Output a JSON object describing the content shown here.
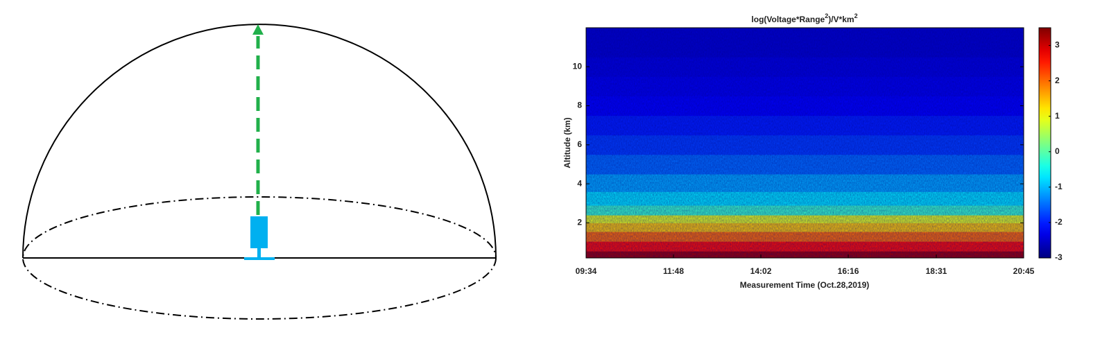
{
  "chart_data": {
    "type": "heatmap",
    "title_parts": [
      "log(Voltage*Range",
      "2",
      ")/V*km",
      "2"
    ],
    "x_label": "Measurement Time (Oct.28,2019)",
    "y_label": "Altitude (km)",
    "xlim": [
      "09:34",
      "20:45"
    ],
    "xticks": [
      "09:34",
      "11:48",
      "14:02",
      "16:16",
      "18:31",
      "20:45"
    ],
    "ylim": [
      0.2,
      12
    ],
    "yticks": [
      2,
      4,
      6,
      8,
      10
    ],
    "clim": [
      -3,
      3.5
    ],
    "cticks": [
      -3,
      -2,
      -1,
      0,
      1,
      2,
      3
    ],
    "colormap": "jet",
    "altitude": [
      0.3,
      0.8,
      1.3,
      1.8,
      2.2,
      2.6,
      3.2,
      4,
      5,
      6,
      7,
      8,
      9,
      10,
      11,
      11.8
    ],
    "values": [
      3.3,
      2.6,
      2.0,
      1.4,
      0.9,
      -0.2,
      -0.7,
      -1.1,
      -1.5,
      -1.8,
      -2.0,
      -2.2,
      -2.3,
      -2.4,
      -2.5,
      -2.5
    ]
  }
}
